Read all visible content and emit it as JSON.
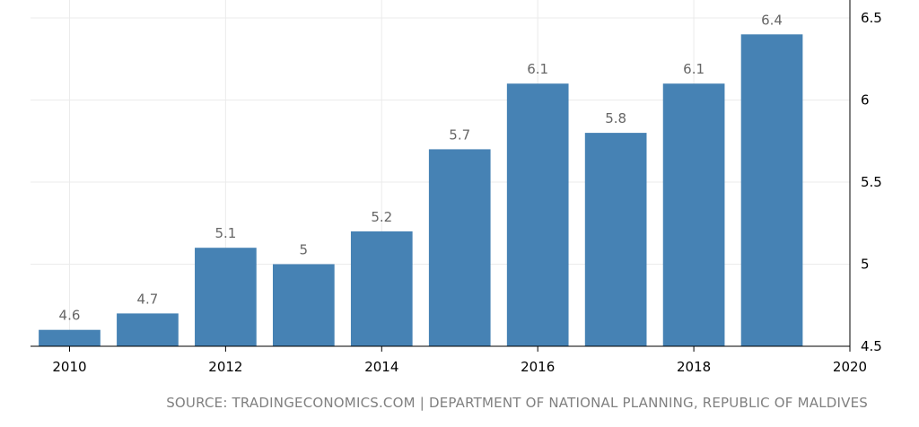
{
  "chart_data": {
    "type": "bar",
    "categories": [
      "2010",
      "2011",
      "2012",
      "2013",
      "2014",
      "2015",
      "2016",
      "2017",
      "2018",
      "2019"
    ],
    "values": [
      4.6,
      4.7,
      5.1,
      5.0,
      5.2,
      5.7,
      6.1,
      5.8,
      6.1,
      6.4
    ],
    "data_labels": [
      "4.6",
      "4.7",
      "5.1",
      "5",
      "5.2",
      "5.7",
      "6.1",
      "5.8",
      "6.1",
      "6.4"
    ],
    "xticks": [
      "2010",
      "2012",
      "2014",
      "2016",
      "2018",
      "2020"
    ],
    "xlim": [
      2009.5,
      2020
    ],
    "yticks": [
      "4.5",
      "5",
      "5.5",
      "6",
      "6.5"
    ],
    "ylim": [
      4.5,
      6.5
    ],
    "y_axis_position": "right",
    "grid": true,
    "bar_color": "#4682b4",
    "title": "",
    "xlabel": "",
    "ylabel": ""
  },
  "source_text": "SOURCE: TRADINGECONOMICS.COM | DEPARTMENT OF NATIONAL PLANNING, REPUBLIC OF MALDIVES"
}
